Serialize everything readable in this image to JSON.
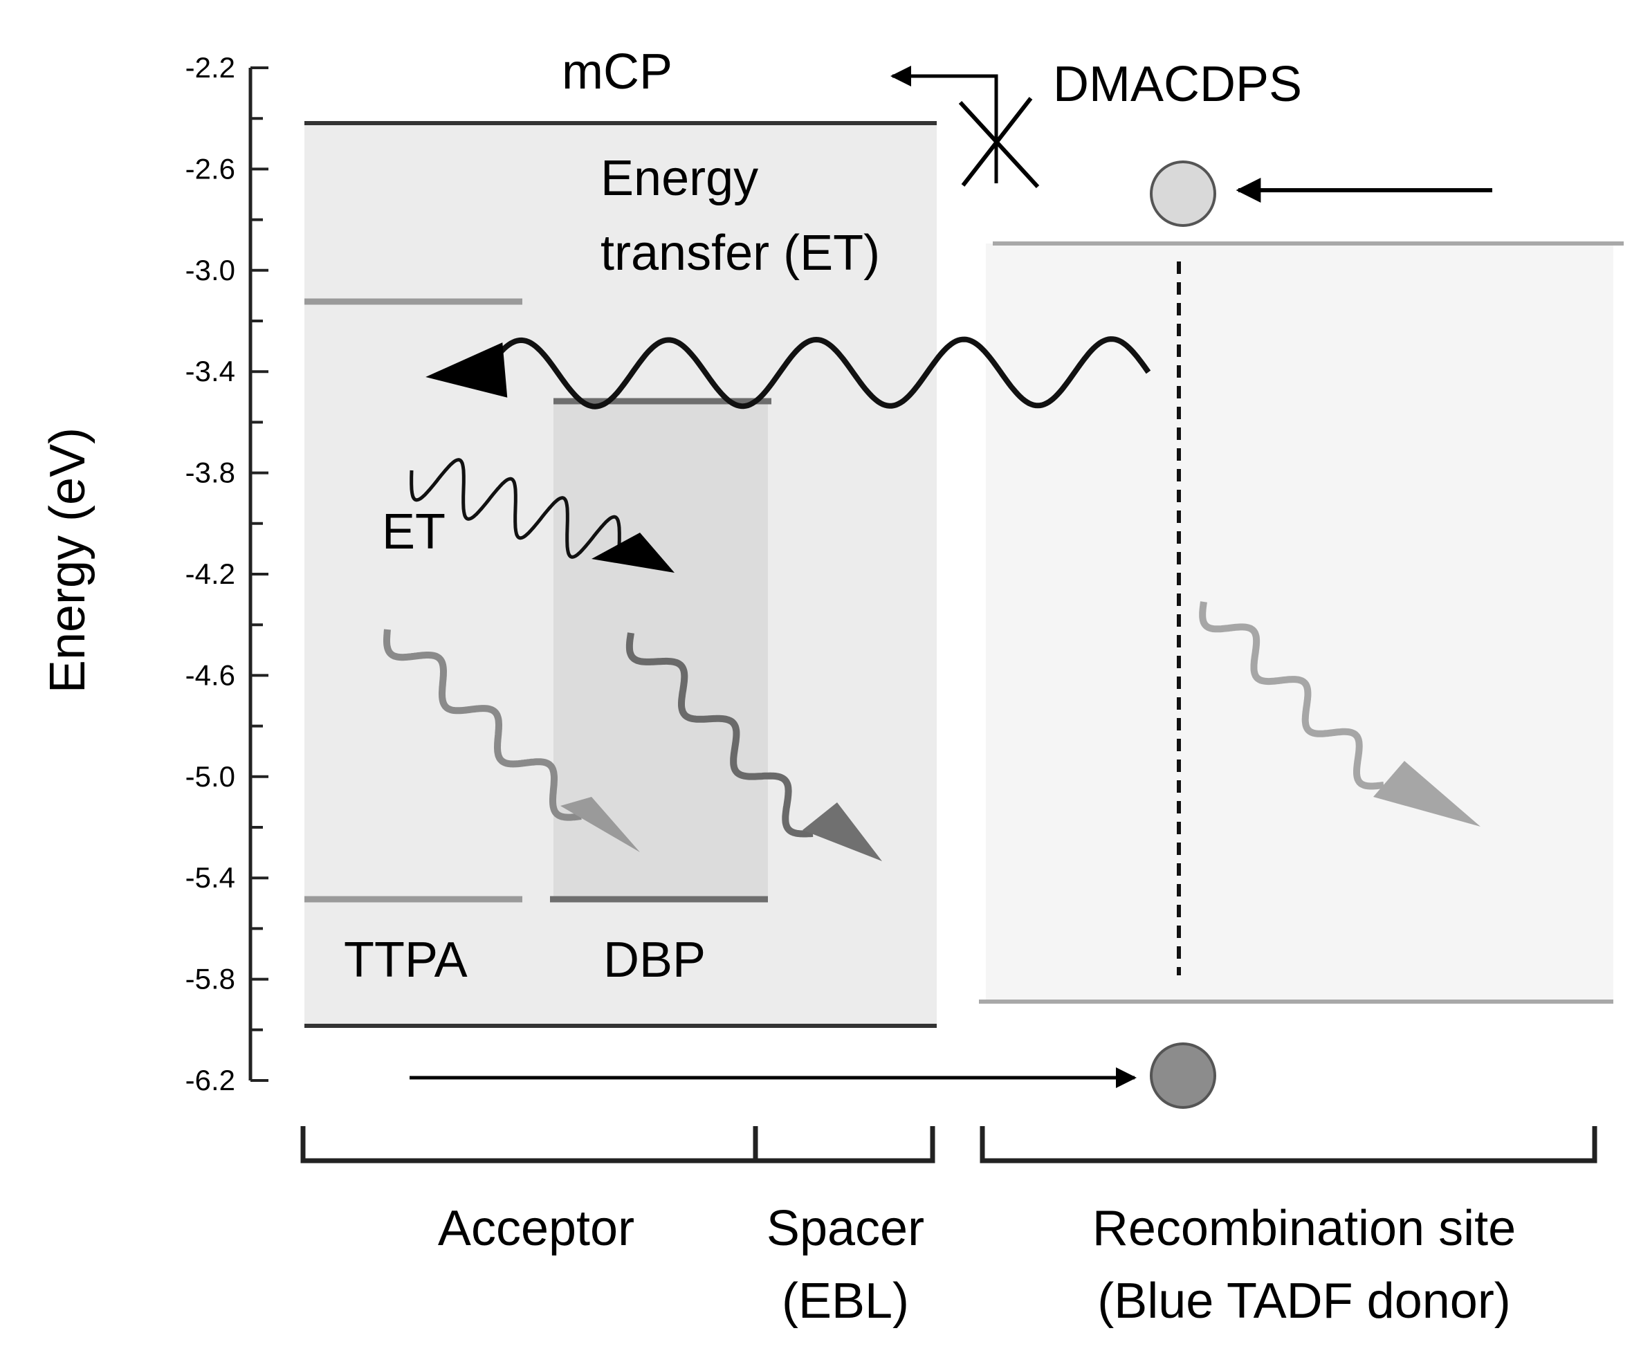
{
  "axis": {
    "label": "Energy (eV)",
    "ticks": [
      "-2.2",
      "-2.6",
      "-3.0",
      "-3.4",
      "-3.8",
      "-4.2",
      "-4.6",
      "-5.0",
      "-5.4",
      "-5.8",
      "-6.2"
    ]
  },
  "labels": {
    "mcp": "mCP",
    "dmacdps": "DMACDPS",
    "et_line1": "Energy",
    "et_line2": "transfer (ET)",
    "et_short": "ET",
    "ttpa": "TTPA",
    "dbp": "DBP"
  },
  "regions": {
    "acceptor": "Acceptor",
    "spacer_line1": "Spacer",
    "spacer_line2": "(EBL)",
    "recomb_line1": "Recombination site",
    "recomb_line2": "(Blue TADF donor)"
  },
  "colors": {
    "mcp_box": "#ececec",
    "dbp_box": "#dcdcdc",
    "donor_box": "#f5f5f5",
    "gray_line": "#9a9a9a",
    "electron": "#d9d9d9",
    "hole": "#8c8c8c"
  }
}
